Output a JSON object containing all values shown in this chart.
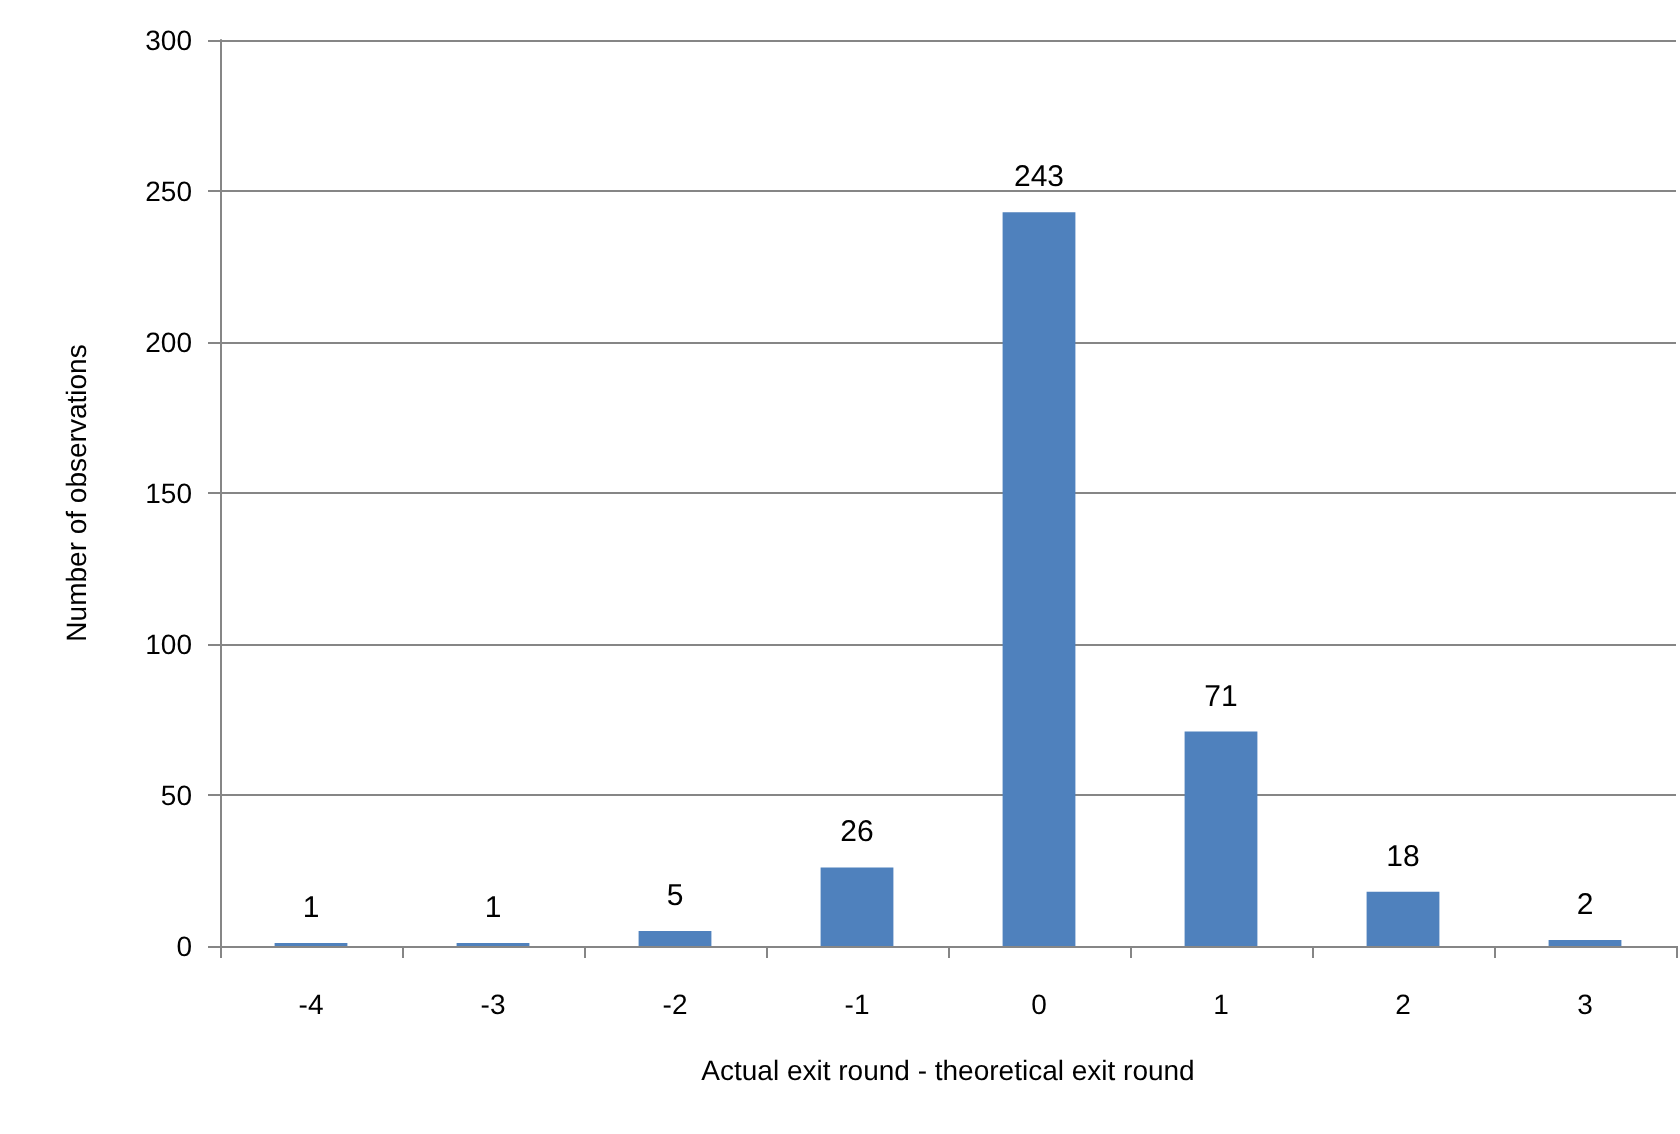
{
  "chart_data": {
    "type": "bar",
    "xlabel": "Actual exit round - theoretical exit round",
    "ylabel": "Number of observations",
    "categories": [
      "-4",
      "-3",
      "-2",
      "-1",
      "0",
      "1",
      "2",
      "3"
    ],
    "values": [
      1,
      1,
      5,
      26,
      243,
      71,
      18,
      2
    ],
    "color": "#4f81bd",
    "ylim": [
      0,
      300
    ],
    "yticks": [
      0,
      50,
      100,
      150,
      200,
      250,
      300
    ],
    "grid": "y",
    "data_labels": true
  }
}
